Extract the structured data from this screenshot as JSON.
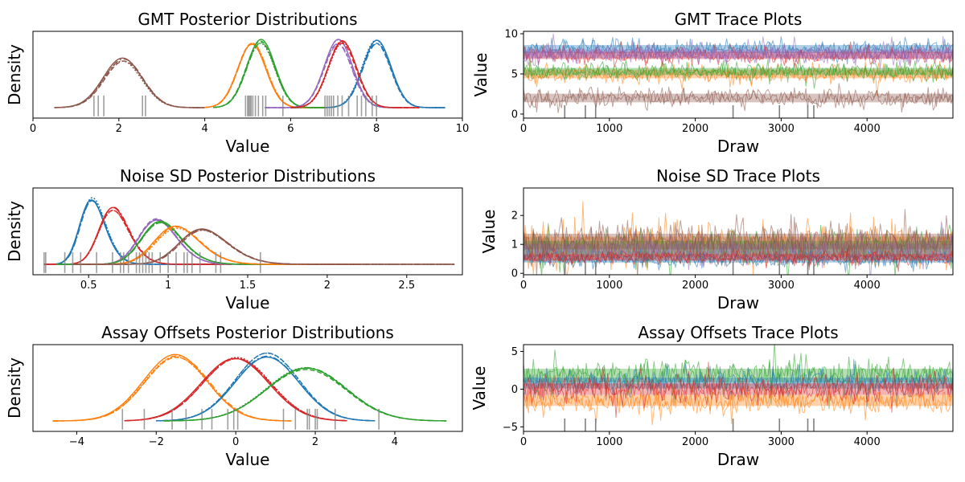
{
  "colors": {
    "c1": "#1f77b4",
    "c2": "#ff7f0e",
    "c3": "#2ca02c",
    "c4": "#d62728",
    "c5": "#9467bd",
    "c6": "#8c564b",
    "rug": "#7f7f7f"
  },
  "chart_data": [
    {
      "type": "line",
      "panel": "density",
      "title": "GMT Posterior Distributions",
      "xlabel": "Value",
      "ylabel": "Density",
      "xlim": [
        0,
        10
      ],
      "xticks": [
        0,
        2,
        4,
        6,
        8,
        10
      ],
      "series": [
        {
          "mean": 2.1,
          "sd": 0.45,
          "min": 0.5,
          "max": 4.0,
          "color": "c6"
        },
        {
          "mean": 8.0,
          "sd": 0.33,
          "min": 6.0,
          "max": 9.6,
          "color": "c1"
        },
        {
          "mean": 5.1,
          "sd": 0.33,
          "min": 4.0,
          "max": 6.8,
          "color": "c2"
        },
        {
          "mean": 5.3,
          "sd": 0.33,
          "min": 4.2,
          "max": 6.8,
          "color": "c3"
        },
        {
          "mean": 7.1,
          "sd": 0.33,
          "min": 5.4,
          "max": 8.6,
          "color": "c5"
        },
        {
          "mean": 7.2,
          "sd": 0.33,
          "min": 6.0,
          "max": 9.0,
          "color": "c4"
        }
      ],
      "rug": [
        1.42,
        1.52,
        1.65,
        2.55,
        2.62,
        4.95,
        5.0,
        5.02,
        5.05,
        5.08,
        5.12,
        5.18,
        5.25,
        5.35,
        5.42,
        5.82,
        6.8,
        6.85,
        6.9,
        6.95,
        7.0,
        7.1,
        7.2,
        7.35,
        7.55,
        7.65,
        7.75,
        7.9,
        8.0
      ]
    },
    {
      "type": "line",
      "panel": "trace",
      "title": "GMT Trace Plots",
      "xlabel": "Draw",
      "ylabel": "Value",
      "xlim": [
        0,
        5000
      ],
      "ylim": [
        -0.5,
        10.3
      ],
      "xticks": [
        0,
        1000,
        2000,
        3000,
        4000
      ],
      "yticks": [
        0,
        5,
        10
      ],
      "bands": [
        {
          "center": 8.1,
          "spread": 0.55,
          "color": "c1"
        },
        {
          "center": 5.0,
          "spread": 0.6,
          "color": "c2"
        },
        {
          "center": 5.3,
          "spread": 0.5,
          "color": "c3"
        },
        {
          "center": 7.3,
          "spread": 0.5,
          "color": "c4"
        },
        {
          "center": 7.5,
          "spread": 0.6,
          "color": "c5"
        },
        {
          "center": 2.0,
          "spread": 0.6,
          "color": "c6"
        }
      ],
      "divergences": [
        480,
        720,
        840,
        2440,
        2980,
        3310,
        3380
      ]
    },
    {
      "type": "line",
      "panel": "density",
      "title": "Noise SD Posterior Distributions",
      "xlabel": "Value",
      "ylabel": "Density",
      "xlim": [
        0.15,
        2.85
      ],
      "xticks": [
        0.5,
        1.0,
        1.5,
        2.0,
        2.5
      ],
      "series": [
        {
          "mean": 0.46,
          "sd": 0.11,
          "skew": 1.5,
          "min": 0.22,
          "max": 1.3,
          "color": "c1"
        },
        {
          "mean": 0.58,
          "sd": 0.13,
          "skew": 1.5,
          "min": 0.22,
          "max": 1.4,
          "color": "c4"
        },
        {
          "mean": 0.84,
          "sd": 0.16,
          "skew": 1.4,
          "min": 0.3,
          "max": 1.8,
          "color": "c5"
        },
        {
          "mean": 0.86,
          "sd": 0.17,
          "skew": 1.4,
          "min": 0.3,
          "max": 1.8,
          "color": "c3"
        },
        {
          "mean": 0.95,
          "sd": 0.19,
          "skew": 1.4,
          "min": 0.4,
          "max": 2.2,
          "color": "c2"
        },
        {
          "mean": 1.1,
          "sd": 0.21,
          "skew": 1.5,
          "min": 0.4,
          "max": 2.8,
          "color": "c6"
        }
      ],
      "rug": [
        0.22,
        0.23,
        0.35,
        0.4,
        0.45,
        0.55,
        0.65,
        0.7,
        0.72,
        0.75,
        0.8,
        0.82,
        0.84,
        0.86,
        0.88,
        0.9,
        0.95,
        1.0,
        1.05,
        1.1,
        1.12,
        1.15,
        1.2,
        1.3,
        1.33,
        1.58
      ]
    },
    {
      "type": "line",
      "panel": "trace",
      "title": "Noise SD Trace Plots",
      "xlabel": "Draw",
      "ylabel": "Value",
      "xlim": [
        0,
        5000
      ],
      "ylim": [
        -0.05,
        2.95
      ],
      "xticks": [
        0,
        1000,
        2000,
        3000,
        4000
      ],
      "yticks": [
        0,
        1,
        2
      ],
      "bands": [
        {
          "center": 0.95,
          "spread": 0.35,
          "color": "c2"
        },
        {
          "center": 0.85,
          "spread": 0.3,
          "color": "c3"
        },
        {
          "center": 0.8,
          "spread": 0.25,
          "color": "c5"
        },
        {
          "center": 0.48,
          "spread": 0.12,
          "color": "c1"
        },
        {
          "center": 0.55,
          "spread": 0.12,
          "color": "c4"
        },
        {
          "center": 1.1,
          "spread": 0.3,
          "color": "c6"
        }
      ],
      "divergences": [
        480,
        720,
        840,
        2440,
        2980,
        3310,
        3380
      ]
    },
    {
      "type": "line",
      "panel": "density",
      "title": "Assay Offsets Posterior Distributions",
      "xlabel": "Value",
      "ylabel": "Density",
      "xlim": [
        -5.1,
        5.7
      ],
      "xticks": [
        -4,
        -2,
        0,
        2,
        4
      ],
      "series": [
        {
          "mean": -1.5,
          "sd": 0.8,
          "min": -4.6,
          "max": 1.4,
          "color": "c2"
        },
        {
          "mean": 0.0,
          "sd": 0.85,
          "min": -2.8,
          "max": 2.8,
          "color": "c4"
        },
        {
          "mean": 0.8,
          "sd": 0.8,
          "min": -2.0,
          "max": 3.5,
          "color": "c1"
        },
        {
          "mean": 1.8,
          "sd": 1.0,
          "min": -1.8,
          "max": 5.3,
          "color": "c3"
        }
      ],
      "rug": [
        -2.85,
        -2.3,
        -1.6,
        -1.25,
        -0.85,
        -0.6,
        -0.2,
        -0.05,
        0.05,
        1.2,
        1.5,
        1.8,
        1.85,
        2.0,
        2.05,
        2.5,
        3.6
      ]
    },
    {
      "type": "line",
      "panel": "trace",
      "title": "Assay Offsets Trace Plots",
      "xlabel": "Draw",
      "ylabel": "Value",
      "xlim": [
        0,
        5000
      ],
      "ylim": [
        -5.6,
        5.9
      ],
      "xticks": [
        0,
        1000,
        2000,
        3000,
        4000
      ],
      "yticks": [
        -5,
        0,
        5
      ],
      "bands": [
        {
          "center": 1.8,
          "spread": 1.0,
          "color": "c3"
        },
        {
          "center": 0.8,
          "spread": 0.8,
          "color": "c1"
        },
        {
          "center": -1.5,
          "spread": 0.8,
          "color": "c2"
        },
        {
          "center": 0.0,
          "spread": 0.85,
          "color": "c4"
        }
      ],
      "divergences": [
        480,
        720,
        840,
        2440,
        2980,
        3310,
        3380
      ]
    }
  ]
}
